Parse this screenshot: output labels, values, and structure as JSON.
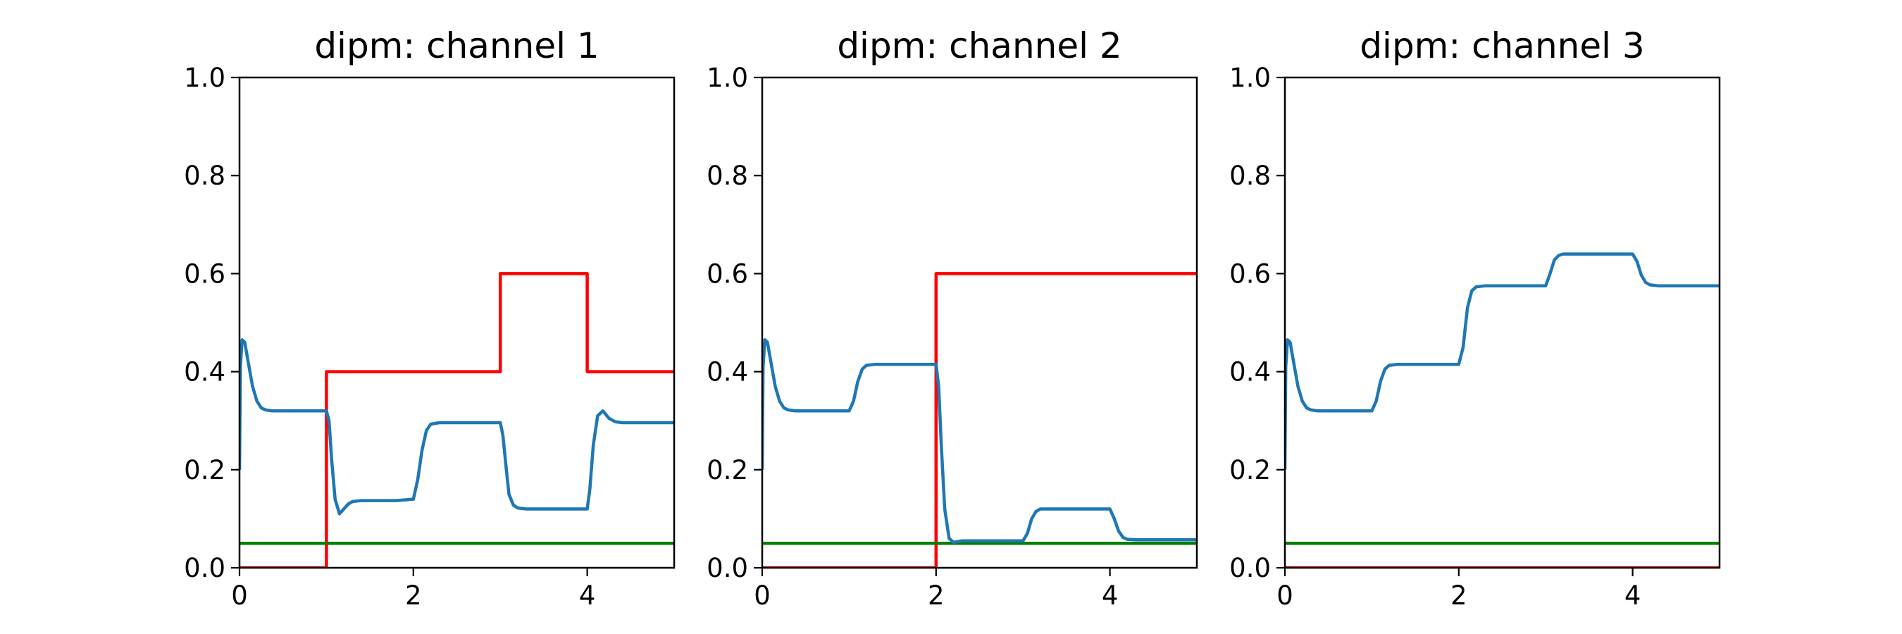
{
  "chart_data": [
    {
      "type": "line",
      "title": "dipm: channel 1",
      "xlim": [
        0,
        5
      ],
      "ylim": [
        0,
        1
      ],
      "xticks": [
        0,
        2,
        4
      ],
      "yticks": [
        0.0,
        0.2,
        0.4,
        0.6,
        0.8,
        1.0
      ],
      "series": [
        {
          "color": "#ff0000",
          "x": [
            0,
            1,
            1,
            3,
            3,
            4,
            4,
            5
          ],
          "y": [
            0,
            0,
            0.4,
            0.4,
            0.6,
            0.6,
            0.4,
            0.4
          ]
        },
        {
          "color": "#008000",
          "x": [
            0,
            5
          ],
          "y": [
            0.05,
            0.05
          ]
        },
        {
          "color": "#1f77b4",
          "x": [
            0,
            0.01,
            0.03,
            0.06,
            0.1,
            0.15,
            0.2,
            0.25,
            0.3,
            0.38,
            0.45,
            0.6,
            0.8,
            1.0,
            1.03,
            1.06,
            1.1,
            1.15,
            1.2,
            1.25,
            1.3,
            1.4,
            1.6,
            1.8,
            2.0,
            2.05,
            2.1,
            2.15,
            2.2,
            2.3,
            2.4,
            2.6,
            2.8,
            3.0,
            3.03,
            3.07,
            3.1,
            3.15,
            3.2,
            3.3,
            3.5,
            3.7,
            4.0,
            4.03,
            4.07,
            4.12,
            4.18,
            4.25,
            4.32,
            4.4,
            4.6,
            4.8,
            5.0
          ],
          "y": [
            0.2,
            0.41,
            0.465,
            0.46,
            0.42,
            0.37,
            0.34,
            0.326,
            0.322,
            0.32,
            0.32,
            0.32,
            0.32,
            0.32,
            0.3,
            0.22,
            0.14,
            0.11,
            0.12,
            0.13,
            0.135,
            0.137,
            0.137,
            0.137,
            0.14,
            0.18,
            0.24,
            0.28,
            0.293,
            0.296,
            0.296,
            0.296,
            0.296,
            0.296,
            0.27,
            0.2,
            0.15,
            0.128,
            0.122,
            0.12,
            0.12,
            0.12,
            0.12,
            0.16,
            0.25,
            0.31,
            0.32,
            0.305,
            0.298,
            0.296,
            0.296,
            0.296,
            0.296
          ]
        }
      ]
    },
    {
      "type": "line",
      "title": "dipm: channel 2",
      "xlim": [
        0,
        5
      ],
      "ylim": [
        0,
        1
      ],
      "xticks": [
        0,
        2,
        4
      ],
      "yticks": [
        0.0,
        0.2,
        0.4,
        0.6,
        0.8,
        1.0
      ],
      "series": [
        {
          "color": "#ff0000",
          "x": [
            0,
            2,
            2,
            5
          ],
          "y": [
            0,
            0,
            0.6,
            0.6
          ]
        },
        {
          "color": "#008000",
          "x": [
            0,
            5
          ],
          "y": [
            0.05,
            0.05
          ]
        },
        {
          "color": "#1f77b4",
          "x": [
            0,
            0.01,
            0.03,
            0.06,
            0.1,
            0.15,
            0.2,
            0.25,
            0.3,
            0.38,
            0.45,
            0.6,
            0.8,
            1.0,
            1.05,
            1.1,
            1.15,
            1.2,
            1.3,
            1.4,
            1.6,
            1.8,
            2.0,
            2.03,
            2.06,
            2.1,
            2.15,
            2.2,
            2.3,
            2.5,
            2.7,
            3.0,
            3.05,
            3.1,
            3.15,
            3.2,
            3.3,
            3.5,
            3.7,
            4.0,
            4.05,
            4.1,
            4.15,
            4.2,
            4.3,
            4.5,
            5.0
          ],
          "y": [
            0.2,
            0.41,
            0.465,
            0.46,
            0.42,
            0.37,
            0.34,
            0.326,
            0.322,
            0.32,
            0.32,
            0.32,
            0.32,
            0.32,
            0.34,
            0.38,
            0.405,
            0.413,
            0.415,
            0.415,
            0.415,
            0.415,
            0.415,
            0.37,
            0.25,
            0.12,
            0.06,
            0.052,
            0.055,
            0.055,
            0.055,
            0.055,
            0.07,
            0.1,
            0.115,
            0.12,
            0.12,
            0.12,
            0.12,
            0.12,
            0.1,
            0.075,
            0.062,
            0.058,
            0.057,
            0.057,
            0.057
          ]
        }
      ]
    },
    {
      "type": "line",
      "title": "dipm: channel 3",
      "xlim": [
        0,
        5
      ],
      "ylim": [
        0,
        1
      ],
      "xticks": [
        0,
        2,
        4
      ],
      "yticks": [
        0.0,
        0.2,
        0.4,
        0.6,
        0.8,
        1.0
      ],
      "series": [
        {
          "color": "#ff0000",
          "x": [
            0,
            5
          ],
          "y": [
            0,
            0
          ]
        },
        {
          "color": "#008000",
          "x": [
            0,
            5
          ],
          "y": [
            0.05,
            0.05
          ]
        },
        {
          "color": "#1f77b4",
          "x": [
            0,
            0.01,
            0.03,
            0.06,
            0.1,
            0.15,
            0.2,
            0.25,
            0.3,
            0.38,
            0.45,
            0.6,
            0.8,
            1.0,
            1.05,
            1.1,
            1.15,
            1.2,
            1.3,
            1.4,
            1.6,
            1.8,
            2.0,
            2.05,
            2.1,
            2.15,
            2.2,
            2.3,
            2.4,
            2.6,
            2.8,
            3.0,
            3.05,
            3.1,
            3.15,
            3.2,
            3.3,
            3.5,
            3.8,
            4.0,
            4.05,
            4.1,
            4.15,
            4.2,
            4.3,
            4.5,
            5.0
          ],
          "y": [
            0.2,
            0.41,
            0.465,
            0.46,
            0.42,
            0.37,
            0.34,
            0.326,
            0.322,
            0.32,
            0.32,
            0.32,
            0.32,
            0.32,
            0.34,
            0.38,
            0.405,
            0.413,
            0.415,
            0.415,
            0.415,
            0.415,
            0.415,
            0.45,
            0.53,
            0.565,
            0.573,
            0.575,
            0.575,
            0.575,
            0.575,
            0.575,
            0.6,
            0.628,
            0.637,
            0.64,
            0.64,
            0.64,
            0.64,
            0.64,
            0.625,
            0.597,
            0.582,
            0.577,
            0.575,
            0.575,
            0.575
          ]
        }
      ]
    }
  ]
}
